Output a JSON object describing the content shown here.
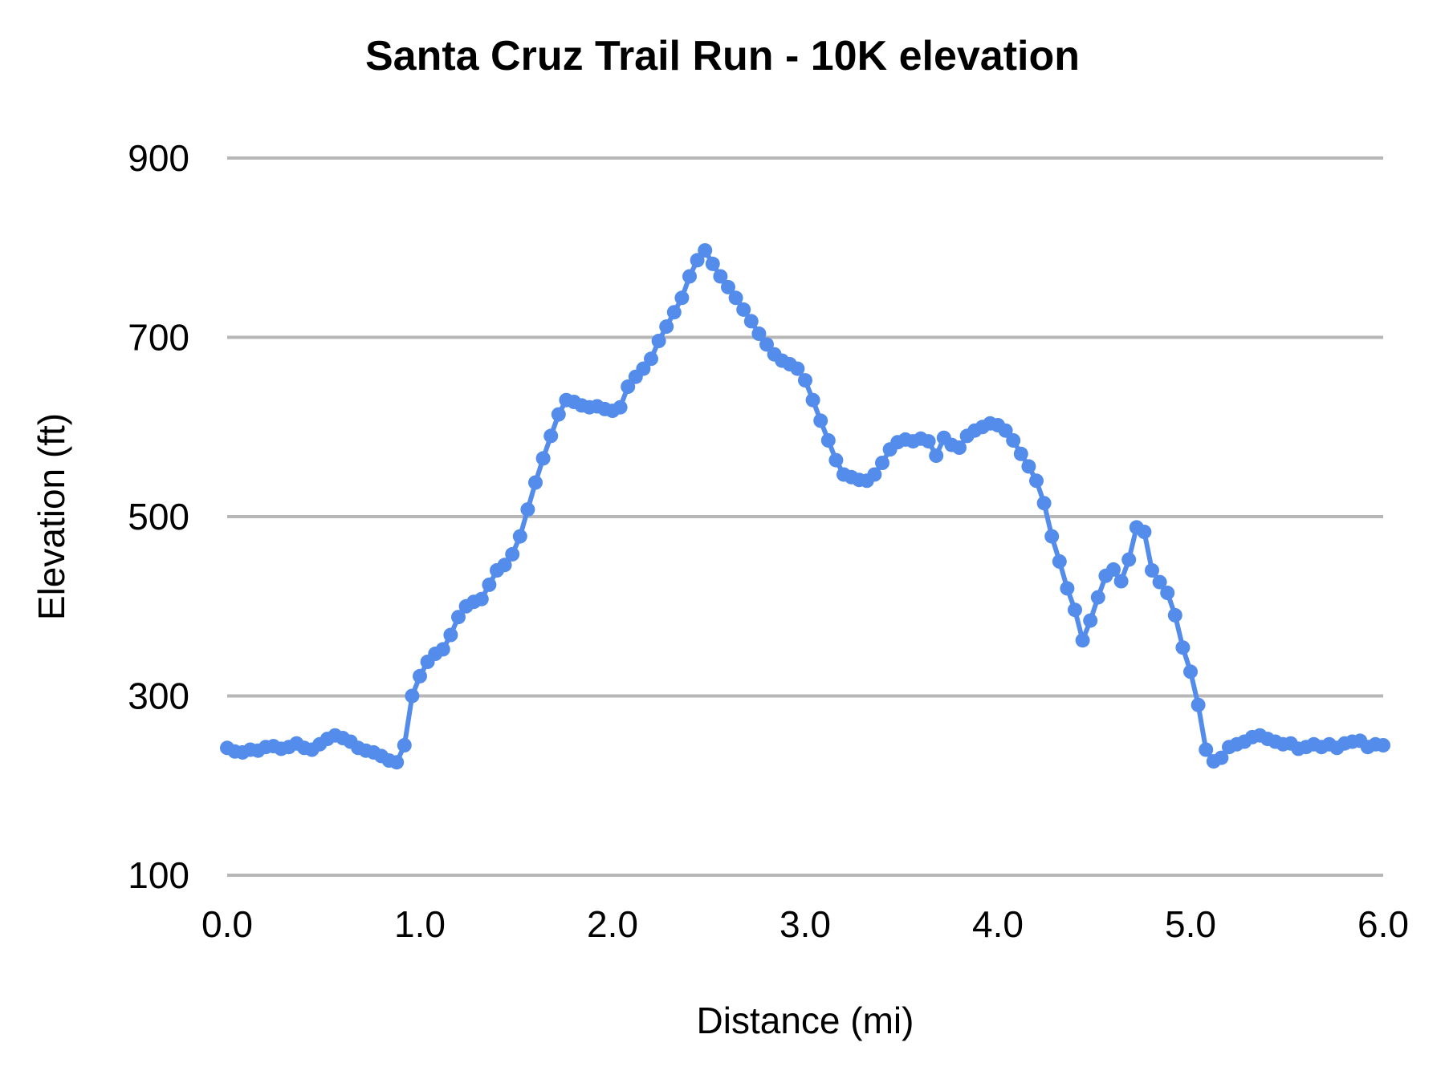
{
  "chart_data": {
    "type": "line",
    "title": "Santa Cruz Trail Run - 10K elevation",
    "xlabel": "Distance (mi)",
    "ylabel": "Elevation (ft)",
    "x_ticks": [
      "0.0",
      "1.0",
      "2.0",
      "3.0",
      "4.0",
      "5.0",
      "6.0"
    ],
    "x_tick_values": [
      0,
      1,
      2,
      3,
      4,
      5,
      6
    ],
    "y_ticks": [
      "100",
      "300",
      "500",
      "700",
      "900"
    ],
    "y_tick_values": [
      100,
      300,
      500,
      700,
      900
    ],
    "xlim": [
      0,
      6
    ],
    "ylim": [
      100,
      900
    ],
    "grid": true,
    "legend": "none",
    "markers": true,
    "series_color": "#548cec",
    "gridline_color": "#b7b7b7",
    "text_color": "#000000",
    "x_unit": "mi",
    "y_unit": "ft",
    "x_start": 0,
    "x_step": 0.04,
    "elevations": [
      242,
      238,
      237,
      240,
      239,
      243,
      244,
      241,
      243,
      247,
      242,
      240,
      246,
      252,
      256,
      253,
      249,
      242,
      239,
      237,
      233,
      228,
      226,
      245,
      300,
      322,
      338,
      347,
      352,
      368,
      388,
      400,
      405,
      408,
      424,
      440,
      446,
      458,
      478,
      508,
      538,
      565,
      590,
      614,
      630,
      628,
      624,
      622,
      623,
      620,
      618,
      622,
      645,
      656,
      665,
      676,
      696,
      712,
      728,
      744,
      768,
      786,
      797,
      782,
      768,
      756,
      744,
      731,
      718,
      704,
      692,
      681,
      674,
      670,
      665,
      652,
      630,
      607,
      585,
      563,
      547,
      544,
      541,
      540,
      547,
      560,
      575,
      583,
      586,
      584,
      587,
      584,
      568,
      588,
      580,
      577,
      590,
      596,
      600,
      604,
      602,
      596,
      585,
      570,
      556,
      540,
      515,
      478,
      450,
      420,
      396,
      362,
      384,
      410,
      434,
      441,
      428,
      452,
      488,
      483,
      440,
      427,
      415,
      390,
      354,
      327,
      290,
      240,
      227,
      231,
      243,
      246,
      249,
      254,
      256,
      252,
      249,
      246,
      247,
      241,
      243,
      246,
      243,
      246,
      242,
      247,
      249,
      250,
      243,
      246,
      245
    ]
  }
}
